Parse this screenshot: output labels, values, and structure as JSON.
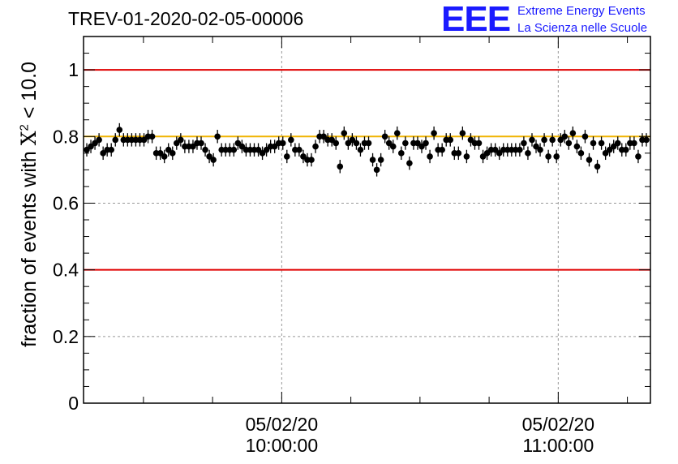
{
  "header": {
    "title": "TREV-01-2020-02-05-00006",
    "logo_mark": "EEE",
    "logo_line1": "Extreme Energy Events",
    "logo_line2": "La Scienza nelle Scuole"
  },
  "colors": {
    "logo_blue": "#1a1aff",
    "threshold_lines": "#e00000",
    "reference_line": "#f0b400",
    "points": "#000000",
    "grid": "#999999"
  },
  "chart_data": {
    "type": "scatter",
    "title": "TREV-01-2020-02-05-00006",
    "xlabel": "",
    "ylabel": "fraction of events with X2 < 10.0",
    "ylabel_parts": {
      "before": "fraction of events with ",
      "chi": "X",
      "sup": "2",
      "after": " < 10.0"
    },
    "ylim": [
      0,
      1.1
    ],
    "xlim": [
      "05/02/20 09:17:00",
      "05/02/20 11:20:00"
    ],
    "yticks": [
      "0",
      "0.2",
      "0.4",
      "0.6",
      "0.8",
      "1"
    ],
    "xticks": [
      {
        "date": "05/02/20",
        "time": "10:00:00"
      },
      {
        "date": "05/02/20",
        "time": "11:00:00"
      }
    ],
    "grid": true,
    "error_bar": 0.02,
    "reference_lines": [
      {
        "y": 1.0,
        "color": "#e00000"
      },
      {
        "y": 0.4,
        "color": "#e00000"
      },
      {
        "y": 0.8,
        "color": "#f0b400"
      }
    ],
    "series": [
      {
        "y": [
          0.76,
          0.77,
          0.78,
          0.79,
          0.75,
          0.76,
          0.76,
          0.79,
          0.82,
          0.79,
          0.79,
          0.79,
          0.79,
          0.79,
          0.79,
          0.8,
          0.8,
          0.75,
          0.75,
          0.74,
          0.76,
          0.75,
          0.78,
          0.79,
          0.77,
          0.77,
          0.77,
          0.78,
          0.78,
          0.76,
          0.74,
          0.73,
          0.8,
          0.76,
          0.76,
          0.76,
          0.76,
          0.78,
          0.77,
          0.76,
          0.76,
          0.76,
          0.76,
          0.75,
          0.76,
          0.77,
          0.77,
          0.78,
          0.78,
          0.74,
          0.79,
          0.76,
          0.76,
          0.74,
          0.73,
          0.73,
          0.77,
          0.8,
          0.8,
          0.79,
          0.79,
          0.78,
          0.71,
          0.81,
          0.78,
          0.79,
          0.78,
          0.76,
          0.78,
          0.78,
          0.73,
          0.7,
          0.73,
          0.8,
          0.78,
          0.77,
          0.81,
          0.75,
          0.78,
          0.72,
          0.78,
          0.78,
          0.77,
          0.78,
          0.74,
          0.81,
          0.76,
          0.76,
          0.79,
          0.79,
          0.75,
          0.75,
          0.81,
          0.74,
          0.79,
          0.78,
          0.78,
          0.74,
          0.75,
          0.76,
          0.76,
          0.75,
          0.76,
          0.76,
          0.76,
          0.76,
          0.76,
          0.78,
          0.75,
          0.79,
          0.77,
          0.76,
          0.79,
          0.74,
          0.79,
          0.74,
          0.79,
          0.8,
          0.78,
          0.81,
          0.77,
          0.75,
          0.8,
          0.73,
          0.78,
          0.71,
          0.78,
          0.75,
          0.76,
          0.77,
          0.78,
          0.76,
          0.76,
          0.78,
          0.78,
          0.74,
          0.79,
          0.79
        ]
      }
    ]
  }
}
